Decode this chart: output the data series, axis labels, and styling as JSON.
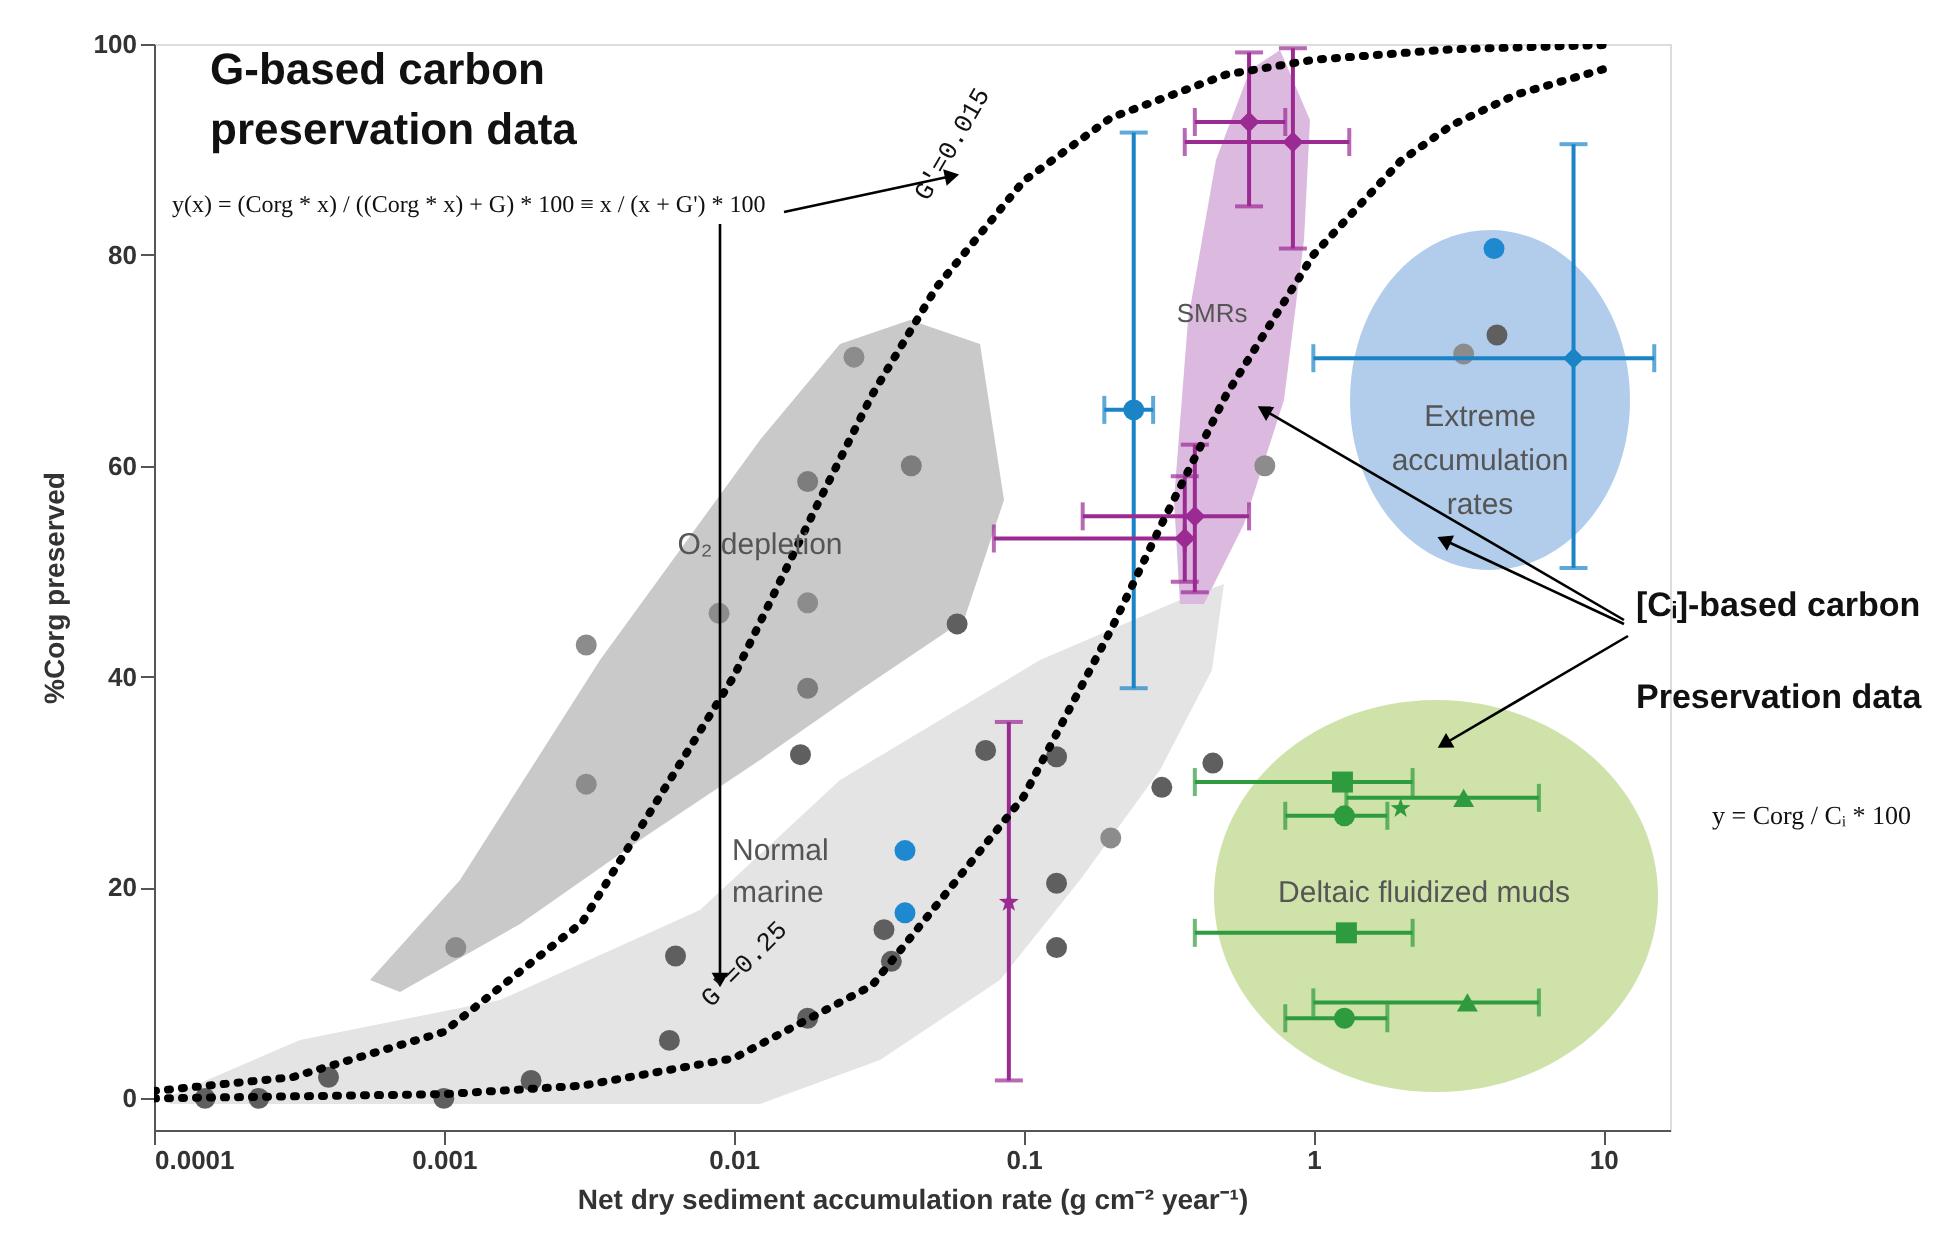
{
  "chart_data": {
    "type": "scatter",
    "xlabel": "Net dry sediment accumulation rate (g cm⁻² year⁻¹)",
    "ylabel": "%Corg preserved",
    "log": "x",
    "xlim": [
      0.0001,
      17
    ],
    "ylim": [
      -3,
      100
    ],
    "xticks": [
      0.0001,
      0.001,
      0.01,
      0.1,
      1,
      10
    ],
    "yticks": [
      0,
      20,
      40,
      60,
      80,
      100
    ],
    "grid": false,
    "series": [
      {
        "color": "#5f5f5f",
        "marker": "circle",
        "x": [
          0.00015,
          0.00023,
          0.0004,
          0.001,
          0.002,
          0.006,
          0.0063,
          0.017,
          0.018,
          0.033,
          0.035,
          0.059,
          0.074,
          0.13,
          0.13,
          0.13,
          0.3,
          0.45,
          4.3
        ],
        "values": [
          0,
          0,
          2,
          0,
          1.7,
          5.5,
          13.5,
          32.6,
          7.6,
          16,
          13,
          45,
          33,
          32.4,
          20.4,
          14.3,
          29.5,
          31.8,
          72.4
        ]
      },
      {
        "color": "#7d7d7d",
        "marker": "circle",
        "x": [
          0.018,
          0.041,
          0.018
        ],
        "values": [
          58.5,
          60,
          38.9
        ]
      },
      {
        "color": "#8c8c8c",
        "marker": "circle",
        "x": [
          0.026,
          0.0031,
          0.0031,
          0.0011,
          0.0089,
          0.018,
          0.2,
          0.68,
          3.3
        ],
        "values": [
          70.3,
          43,
          29.8,
          14.3,
          46,
          47,
          24.7,
          60,
          70.6
        ]
      },
      {
        "color": "#1e88d0",
        "marker": "circle",
        "x": [
          0.039,
          0.039,
          4.2
        ],
        "values": [
          23.5,
          17.6,
          80.6
        ]
      },
      {
        "color": "#1a84c7",
        "marker": "circle",
        "x": [
          0.24
        ],
        "values": [
          65.3
        ],
        "errors": [
          [
            38.9,
            91.6
          ]
        ],
        "xerrors": [
          [
            0.19,
            0.28
          ]
        ]
      },
      {
        "color": "#1a84c7",
        "marker": "diamond",
        "x": [
          7.9
        ],
        "values": [
          70.2
        ],
        "errors": [
          [
            50.3,
            90.5
          ]
        ],
        "xerrors": [
          [
            1.0,
            15
          ]
        ]
      },
      {
        "color": "#9b2a93",
        "marker": "diamond",
        "x": [
          0.6,
          0.36
        ],
        "values": [
          92.6,
          53.1
        ],
        "errors": [
          [
            84.6,
            99.2
          ],
          [
            49,
            59
          ]
        ],
        "xerrors": [
          [
            0.39,
            0.8
          ],
          [
            0.079,
            0.36
          ]
        ]
      },
      {
        "color": "#9b2a93",
        "marker": "diamond",
        "x": [
          0.85,
          0.39
        ],
        "values": [
          90.7,
          55.2
        ],
        "errors": [
          [
            80.6,
            99.6
          ],
          [
            48,
            62
          ]
        ],
        "xerrors": [
          [
            0.36,
            1.33
          ],
          [
            0.16,
            0.6
          ]
        ]
      },
      {
        "color": "#9b2a93",
        "marker": "star",
        "x": [
          0.089
        ],
        "values": [
          18.6
        ],
        "errors": [
          [
            1.7,
            35.7
          ]
        ]
      },
      {
        "color": "#2e9b3e",
        "marker": "square",
        "x": [
          1.26,
          1.3
        ],
        "values": [
          30,
          15.7
        ],
        "xerrors": [
          [
            0.39,
            2.2
          ],
          [
            0.39,
            2.2
          ]
        ]
      },
      {
        "color": "#2e9b3e",
        "marker": "triangle",
        "x": [
          3.3,
          3.4
        ],
        "values": [
          28.5,
          9.1
        ],
        "xerrors": [
          [
            1.3,
            6.0
          ],
          [
            1.0,
            6.0
          ]
        ]
      },
      {
        "color": "#2e9b3e",
        "marker": "circle",
        "x": [
          1.28
        ],
        "values": [
          26.8
        ],
        "xerrors": [
          [
            0.8,
            1.8
          ]
        ]
      },
      {
        "color": "#2e9b3e",
        "marker": "circle",
        "x": [
          1.28
        ],
        "values": [
          7.6
        ],
        "xerrors": [
          [
            0.8,
            1.8
          ]
        ]
      },
      {
        "color": "#2e9b3e",
        "marker": "star",
        "x": [
          2.0
        ],
        "values": [
          27.5
        ]
      },
      {
        "type": "line",
        "color": "#000000",
        "line_style": "dotted",
        "marker": "none",
        "x": [
          0.0001,
          0.0003,
          0.001,
          0.003,
          0.01,
          0.02,
          0.03,
          0.05,
          0.1,
          0.2,
          0.5,
          1,
          3,
          10
        ],
        "values": [
          0.7,
          2,
          6.3,
          16.7,
          40,
          57,
          66.7,
          76.9,
          87,
          93,
          97.1,
          98.5,
          99.5,
          99.9
        ]
      },
      {
        "type": "line",
        "color": "#000000",
        "line_style": "dotted",
        "marker": "none",
        "x": [
          0.0001,
          0.001,
          0.003,
          0.01,
          0.03,
          0.1,
          0.2,
          0.3,
          0.5,
          1,
          2,
          3,
          5,
          10
        ],
        "values": [
          0,
          0.4,
          1.2,
          3.8,
          10.7,
          28.6,
          44.4,
          54.5,
          66.7,
          80,
          88.9,
          92.3,
          95.2,
          97.6
        ]
      }
    ],
    "annotations": [
      "G-based carbon preservation data",
      "y(x) = (Corg * x) / ((Corg * x) + G) * 100 ≡ x / (x + G') * 100",
      "G'=0.015",
      "G'=0.25",
      "O₂ depletion",
      "Normal marine",
      "SMRs",
      "Extreme accumulation rates",
      "Deltaic fluidized muds",
      "[Cᵢ]-based carbon Preservation data",
      "y = Corg / Cᵢ * 100"
    ]
  }
}
